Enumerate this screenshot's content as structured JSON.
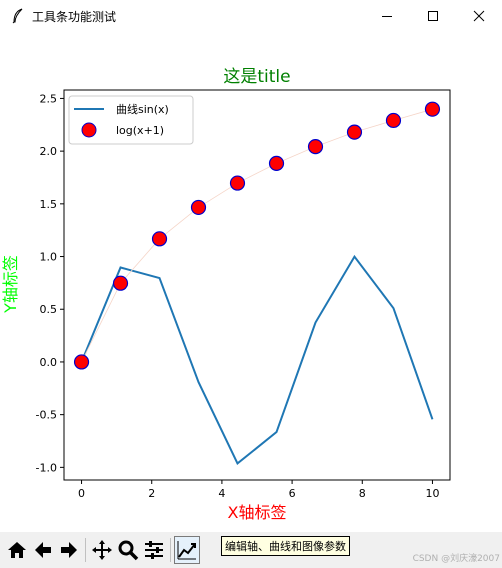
{
  "window": {
    "title": "工具条功能测试",
    "icons": [
      "feather-icon",
      "minimize-icon",
      "maximize-icon",
      "close-icon"
    ]
  },
  "chart_data": {
    "type": "line",
    "title": "这是title",
    "xlabel": "X轴标签",
    "ylabel": "Y轴标签",
    "title_color": "#008000",
    "xlabel_color": "#ff0000",
    "ylabel_color": "#00ff00",
    "xlim": [
      -0.5,
      10.5
    ],
    "ylim": [
      -1.12,
      2.58
    ],
    "xticks": [
      0,
      2,
      4,
      6,
      8,
      10
    ],
    "xtick_labels": [
      "0",
      "2",
      "4",
      "6",
      "8",
      "10"
    ],
    "yticks": [
      -1.0,
      -0.5,
      0.0,
      0.5,
      1.0,
      1.5,
      2.0,
      2.5
    ],
    "ytick_labels": [
      "-1.0",
      "-0.5",
      "0.0",
      "0.5",
      "1.0",
      "1.5",
      "2.0",
      "2.5"
    ],
    "grid": false,
    "legend_position": "top-left",
    "x": [
      0,
      1.111,
      2.222,
      3.333,
      4.444,
      5.556,
      6.667,
      7.778,
      8.889,
      10
    ],
    "series": [
      {
        "name": "曲线sin(x)",
        "style": "line",
        "color": "#1f77b4",
        "values": [
          0.0,
          0.896,
          0.796,
          -0.191,
          -0.963,
          -0.665,
          0.374,
          0.999,
          0.51,
          -0.544
        ]
      },
      {
        "name": "log(x+1)",
        "style": "markers",
        "marker_face": "#ff0000",
        "marker_edge": "#0000cc",
        "values": [
          0.0,
          0.747,
          1.168,
          1.466,
          1.697,
          1.884,
          2.043,
          2.18,
          2.291,
          2.398
        ]
      }
    ]
  },
  "toolbar": {
    "buttons": [
      "home-icon",
      "back-icon",
      "forward-icon",
      "pan-icon",
      "zoom-icon",
      "subplots-config-icon",
      "edit-curves-icon"
    ],
    "tooltip": "编辑轴、曲线和图像参数"
  },
  "watermark": "CSDN @刘庆濠2007"
}
